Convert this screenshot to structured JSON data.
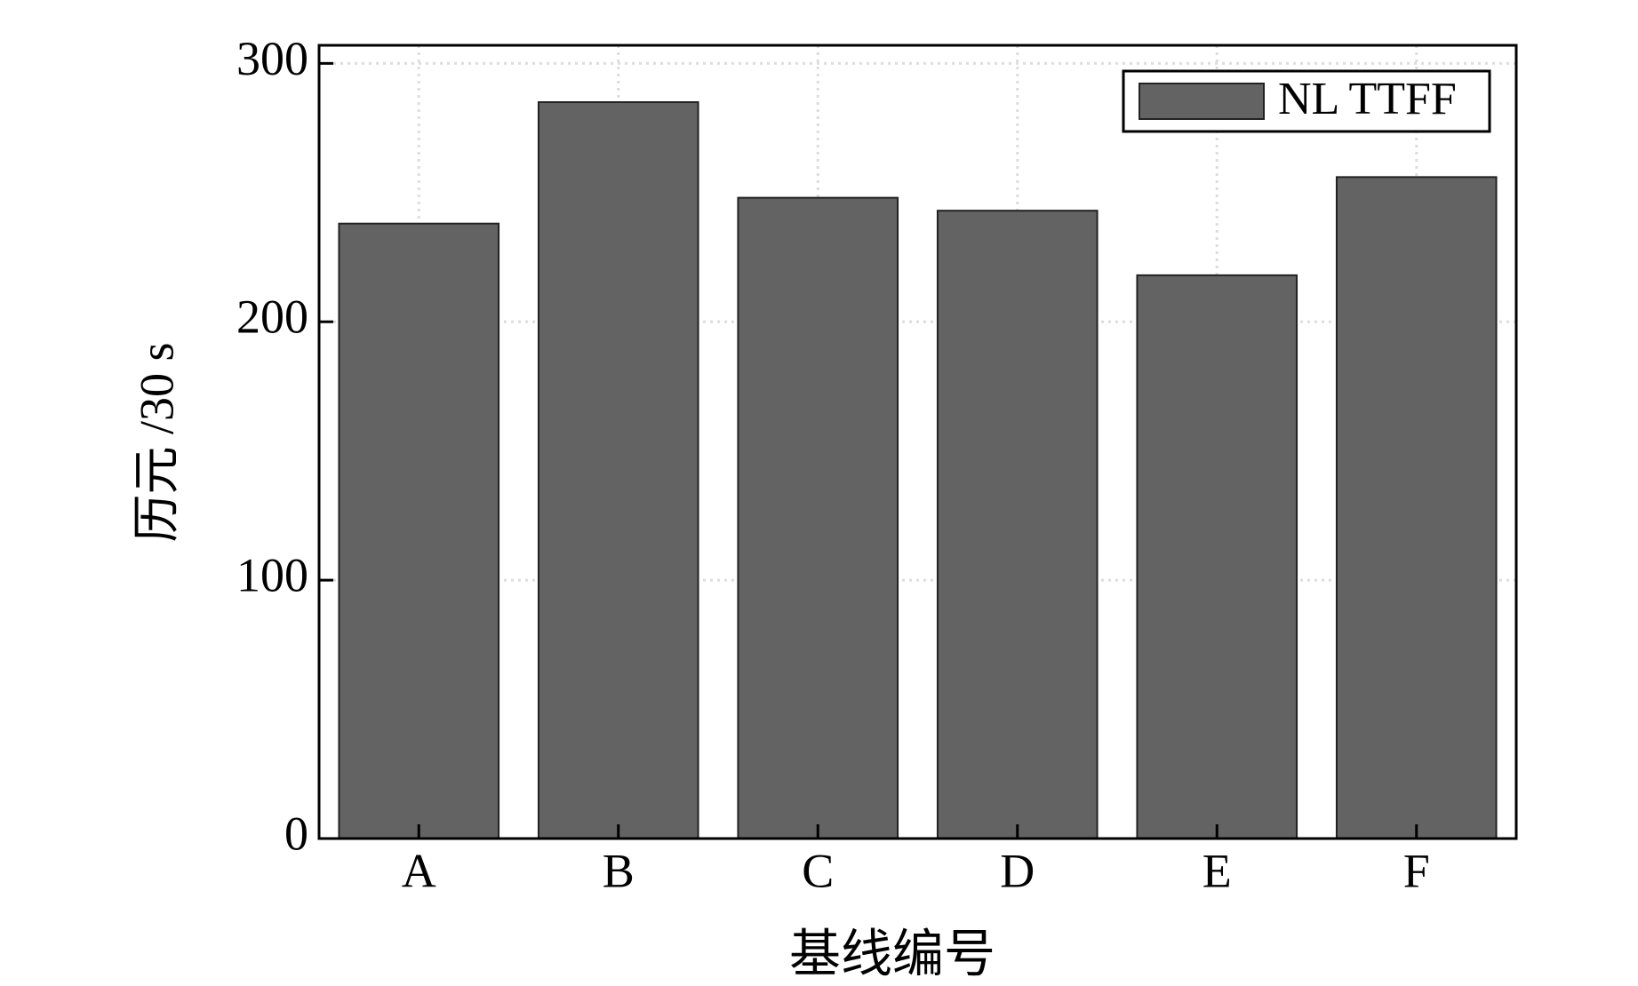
{
  "chart_data": {
    "type": "bar",
    "categories": [
      "A",
      "B",
      "C",
      "D",
      "E",
      "F"
    ],
    "series": [
      {
        "name": "NL TTFF",
        "color": "#636363",
        "values": [
          238,
          285,
          248,
          243,
          218,
          256
        ]
      }
    ],
    "x_label": "基线编号",
    "y_label": "历元 /30 s",
    "ylim": [
      0,
      307
    ],
    "yticks": [
      0,
      100,
      200,
      300
    ],
    "grid": true,
    "legend": "upper right"
  }
}
